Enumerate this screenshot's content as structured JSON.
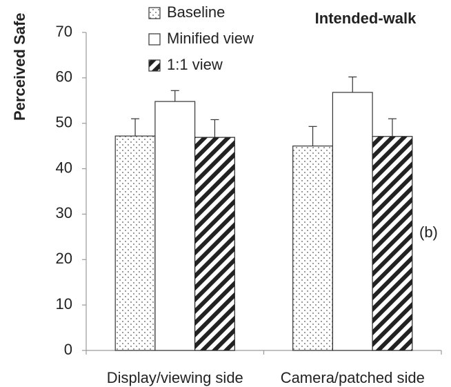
{
  "chart_data": {
    "type": "bar",
    "title": "Intended-walk",
    "y_label": "Perceived Safe",
    "annotation": "(b)",
    "categories": [
      "Display/viewing side",
      "Camera/patched side"
    ],
    "series": [
      {
        "name": "Baseline",
        "pattern": "dots",
        "color": "#333333",
        "values": [
          47.2,
          45.0
        ],
        "errors": [
          3.8,
          4.3
        ]
      },
      {
        "name": "Minified view",
        "pattern": "none",
        "color": "#333333",
        "values": [
          54.8,
          56.8
        ],
        "errors": [
          2.4,
          3.4
        ]
      },
      {
        "name": "1:1 view",
        "pattern": "stripes",
        "color": "#222222",
        "values": [
          46.9,
          47.1
        ],
        "errors": [
          3.9,
          3.9
        ]
      }
    ],
    "ylim": [
      0,
      70
    ],
    "yticks": [
      0,
      10,
      20,
      30,
      40,
      50,
      60,
      70
    ],
    "grid": false
  }
}
